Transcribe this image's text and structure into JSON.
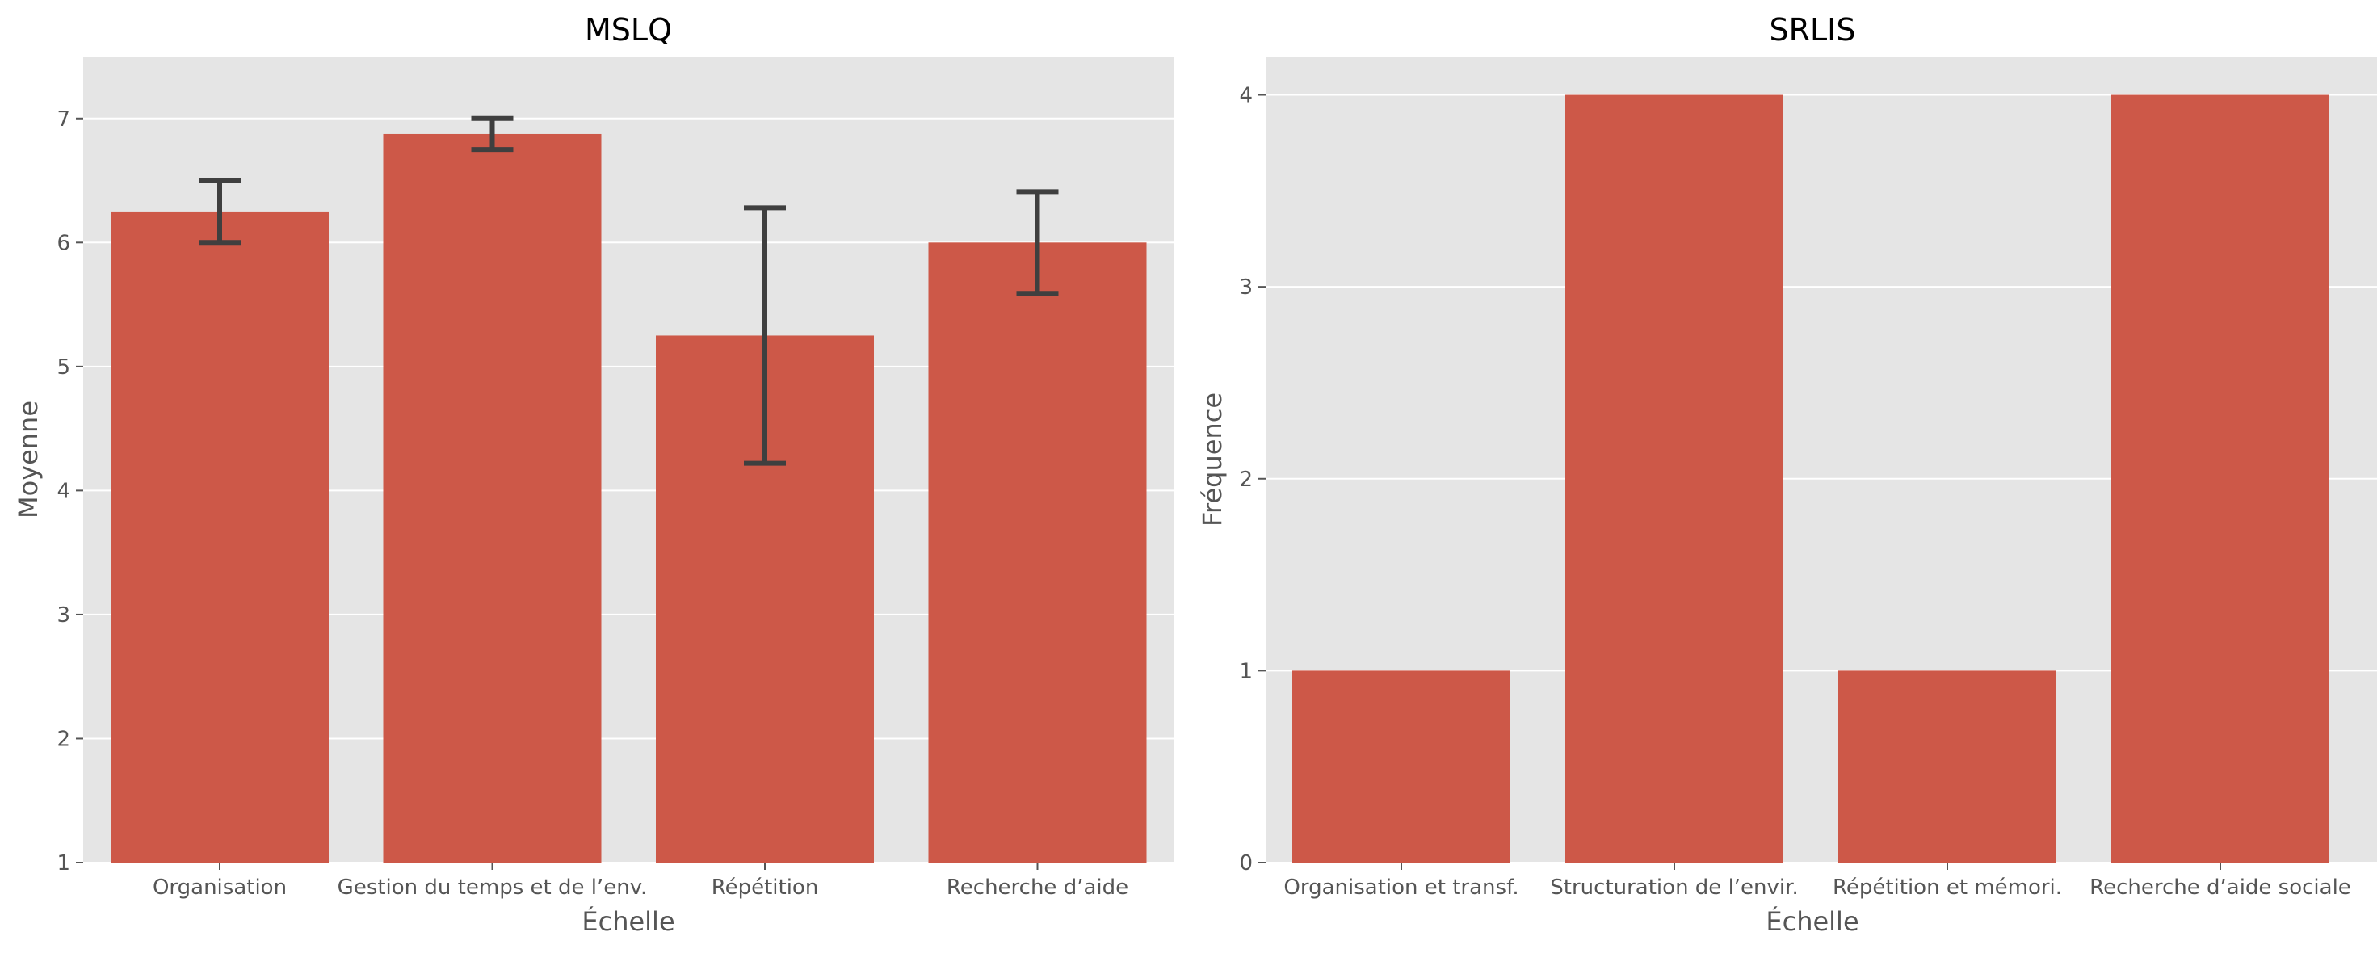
{
  "chart_data": [
    {
      "type": "bar",
      "title": "MSLQ",
      "xlabel": "Échelle",
      "ylabel": "Moyenne",
      "categories": [
        "Organisation",
        "Gestion du temps et de l’env.",
        "Répétition",
        "Recherche d’aide"
      ],
      "values": [
        6.25,
        6.875,
        5.25,
        6.0
      ],
      "error_low": [
        6.0,
        6.75,
        4.22,
        5.59
      ],
      "error_high": [
        6.5,
        7.0,
        6.28,
        6.41
      ],
      "ylim": [
        1,
        7.5
      ],
      "yticks": [
        1,
        2,
        3,
        4,
        5,
        6,
        7
      ],
      "grid": true,
      "bar_color": "#cd5848"
    },
    {
      "type": "bar",
      "title": "SRLIS",
      "xlabel": "Échelle",
      "ylabel": "Fréquence",
      "categories": [
        "Organisation et transf.",
        "Structuration de l’envir.",
        "Répétition et mémori.",
        "Recherche d’aide sociale"
      ],
      "values": [
        1,
        4,
        1,
        4
      ],
      "ylim": [
        0,
        4.2
      ],
      "yticks": [
        0,
        1,
        2,
        3,
        4
      ],
      "grid": true,
      "bar_color": "#cd5848"
    }
  ]
}
